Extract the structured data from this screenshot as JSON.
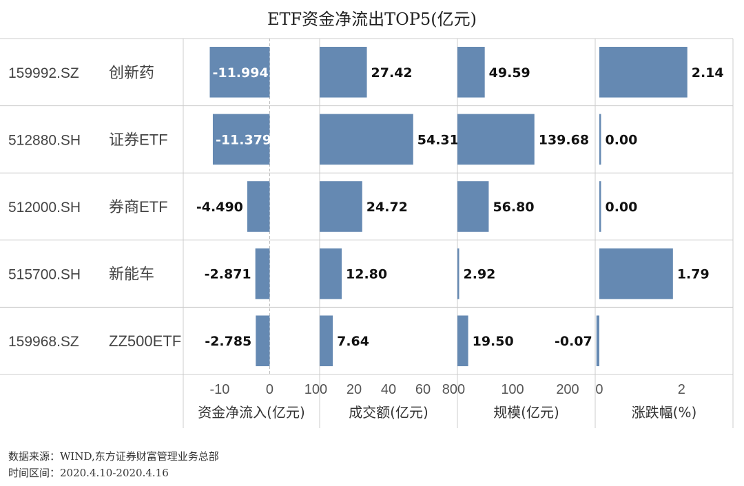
{
  "title": "ETF资金净流出TOP5(亿元)",
  "footer": {
    "source": "数据来源：WIND,东方证券财富管理业务总部",
    "period": "时间区间：2020.4.10-2020.4.16"
  },
  "colors": {
    "bar": "#6589b2",
    "grid": "#cccccc",
    "text": "#333333"
  },
  "chart_data": {
    "type": "bar",
    "orientation": "horizontal",
    "title": "ETF资金净流出TOP5(亿元)",
    "rows": [
      {
        "code": "159992.SZ",
        "name": "创新药"
      },
      {
        "code": "512880.SH",
        "name": "证券ETF"
      },
      {
        "code": "512000.SH",
        "name": "券商ETF"
      },
      {
        "code": "515700.SH",
        "name": "新能车"
      },
      {
        "code": "159968.SZ",
        "name": "ZZ500ETF"
      }
    ],
    "panels": [
      {
        "name": "资金净流入(亿元)",
        "values": [
          -11.994,
          -11.379,
          -4.49,
          -2.871,
          -2.785
        ],
        "labels": [
          "-11.994",
          "-11.379",
          "-4.490",
          "-2.871",
          "-2.785"
        ],
        "xlim": [
          -17.3,
          10
        ],
        "ticks": [
          "-10",
          "0",
          "10"
        ],
        "tick_values": [
          -10,
          0,
          10
        ],
        "zero_line": true
      },
      {
        "name": "成交额(亿元)",
        "values": [
          27.42,
          54.31,
          24.72,
          12.8,
          7.64
        ],
        "labels": [
          "27.42",
          "54.31",
          "24.72",
          "12.80",
          "7.64"
        ],
        "xlim": [
          0,
          80
        ],
        "ticks": [
          "0",
          "20",
          "40",
          "60",
          "80"
        ],
        "tick_values": [
          0,
          20,
          40,
          60,
          80
        ]
      },
      {
        "name": "规模(亿元)",
        "values": [
          49.59,
          139.68,
          56.8,
          2.92,
          19.5
        ],
        "labels": [
          "49.59",
          "139.68",
          "56.80",
          "2.92",
          "19.50"
        ],
        "xlim": [
          0,
          250
        ],
        "ticks": [
          "0",
          "100",
          "200"
        ],
        "tick_values": [
          0,
          100,
          200
        ]
      },
      {
        "name": "涨跌幅(%)",
        "values": [
          2.14,
          0.0,
          0.0,
          1.79,
          -0.07
        ],
        "labels": [
          "2.14",
          "0.00",
          "0.00",
          "1.79",
          "-0.07"
        ],
        "xlim": [
          -0.1,
          3.25
        ],
        "ticks": [
          "0",
          "2"
        ],
        "tick_values": [
          0,
          2
        ]
      }
    ]
  }
}
